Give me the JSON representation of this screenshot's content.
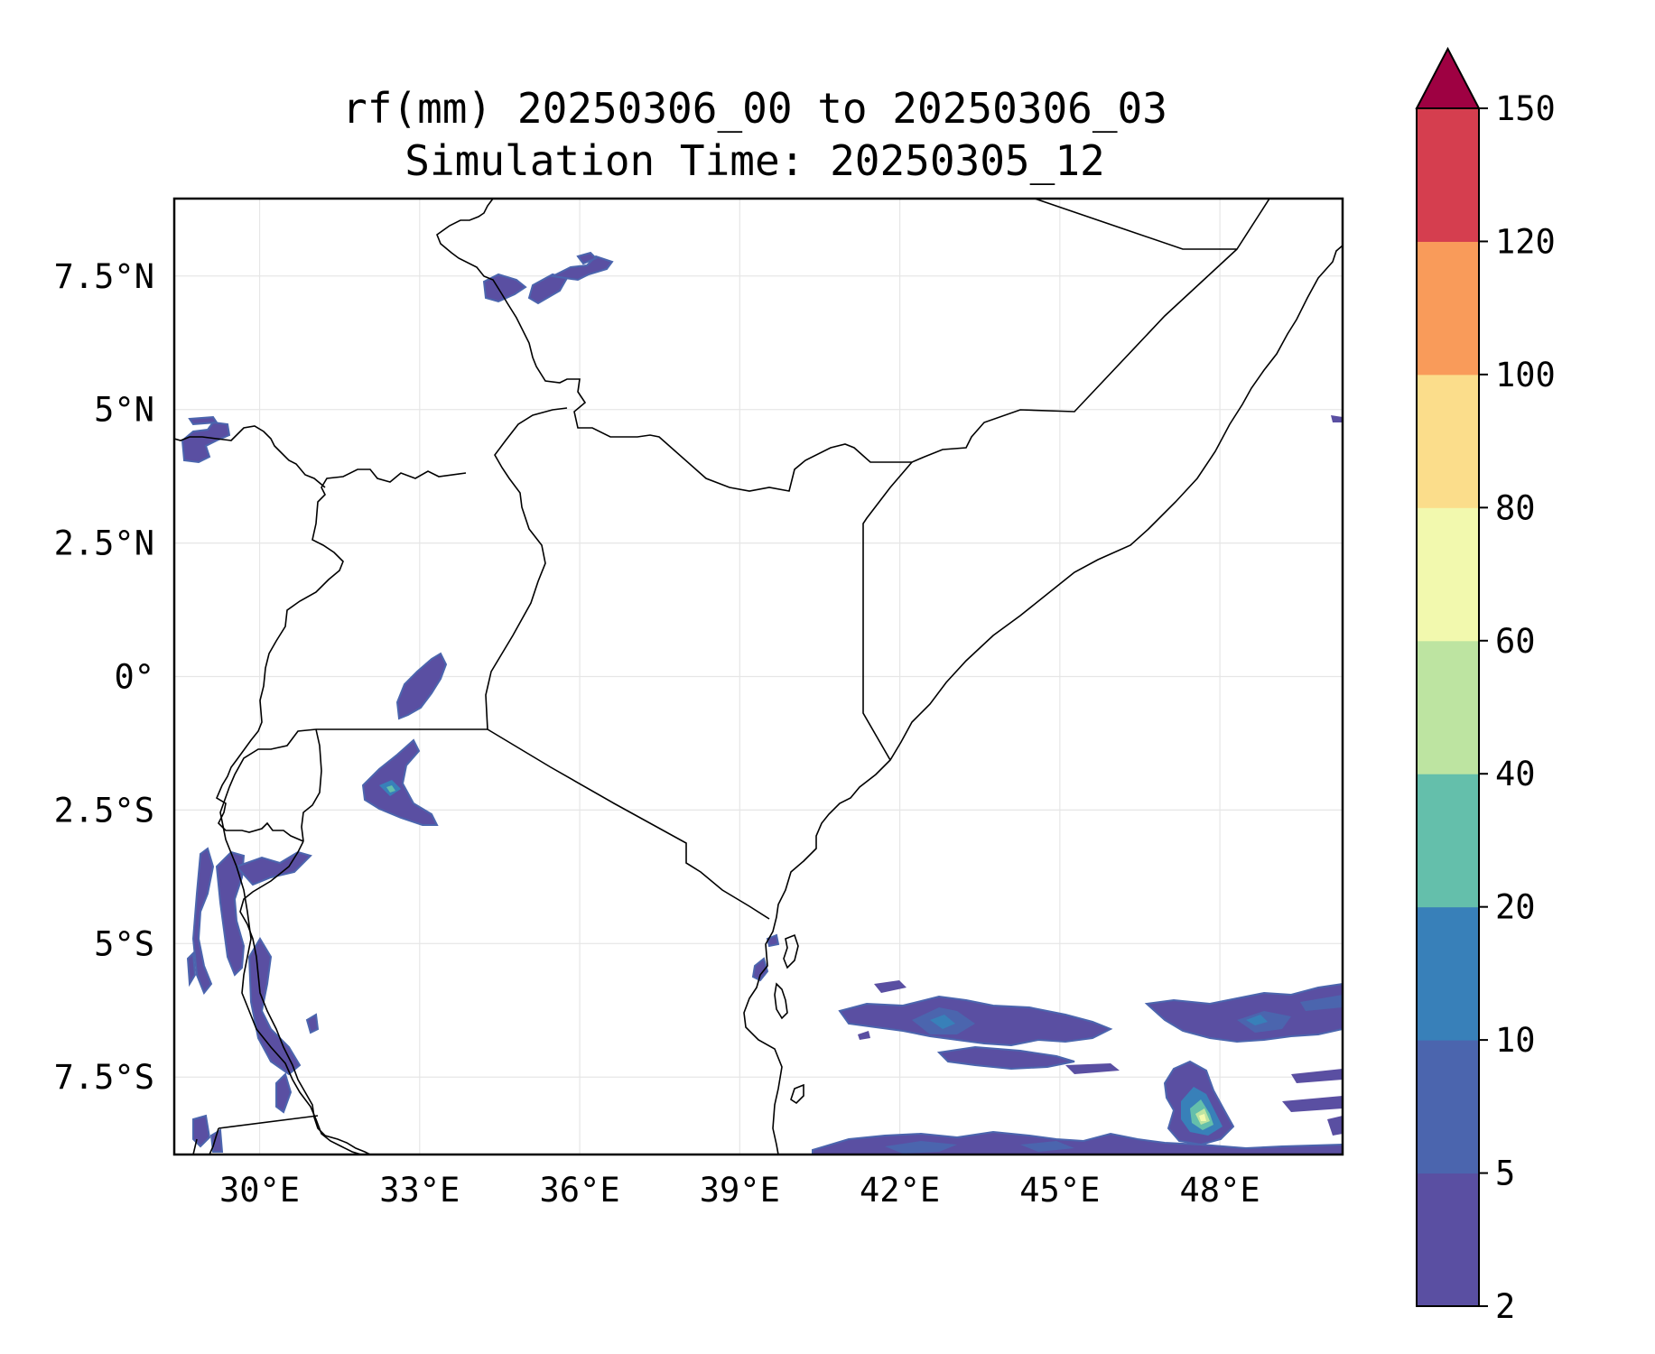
{
  "title": {
    "line1": "rf(mm) 20250306_00 to 20250306_03",
    "line2": "Simulation Time: 20250305_12"
  },
  "map": {
    "lon_range": [
      28.4,
      50.3
    ],
    "lat_range": [
      -8.95,
      8.95
    ],
    "lon_ticks": [
      {
        "value": 30,
        "label": "30°E"
      },
      {
        "value": 33,
        "label": "33°E"
      },
      {
        "value": 36,
        "label": "36°E"
      },
      {
        "value": 39,
        "label": "39°E"
      },
      {
        "value": 42,
        "label": "42°E"
      },
      {
        "value": 45,
        "label": "45°E"
      },
      {
        "value": 48,
        "label": "48°E"
      }
    ],
    "lat_ticks": [
      {
        "value": 7.5,
        "label": "7.5°N"
      },
      {
        "value": 5,
        "label": "5°N"
      },
      {
        "value": 2.5,
        "label": "2.5°N"
      },
      {
        "value": 0,
        "label": "0°"
      },
      {
        "value": -2.5,
        "label": "2.5°S"
      },
      {
        "value": -5,
        "label": "5°S"
      },
      {
        "value": -7.5,
        "label": "7.5°S"
      }
    ],
    "gridlines": true
  },
  "colorbar": {
    "levels": [
      {
        "label": "2",
        "color": "#5a4fa2"
      },
      {
        "label": "5",
        "color": "#4b65ae"
      },
      {
        "label": "10",
        "color": "#3880b9"
      },
      {
        "label": "20",
        "color": "#64bfab"
      },
      {
        "label": "40",
        "color": "#bde4a1"
      },
      {
        "label": "60",
        "color": "#f2f9ae"
      },
      {
        "label": "80",
        "color": "#fbdd8b"
      },
      {
        "label": "100",
        "color": "#f99b5a"
      },
      {
        "label": "120",
        "color": "#d53e4f"
      },
      {
        "label": "150",
        "color": "#9e0142"
      }
    ],
    "extend": "max"
  },
  "chart_data": {
    "type": "heatmap",
    "title": "rf(mm) 20250306_00 to 20250306_03\nSimulation Time: 20250305_12",
    "variable": "rf(mm)",
    "colorbar_levels": [
      2,
      5,
      10,
      20,
      40,
      60,
      80,
      100,
      120,
      150
    ],
    "grid": true
  }
}
